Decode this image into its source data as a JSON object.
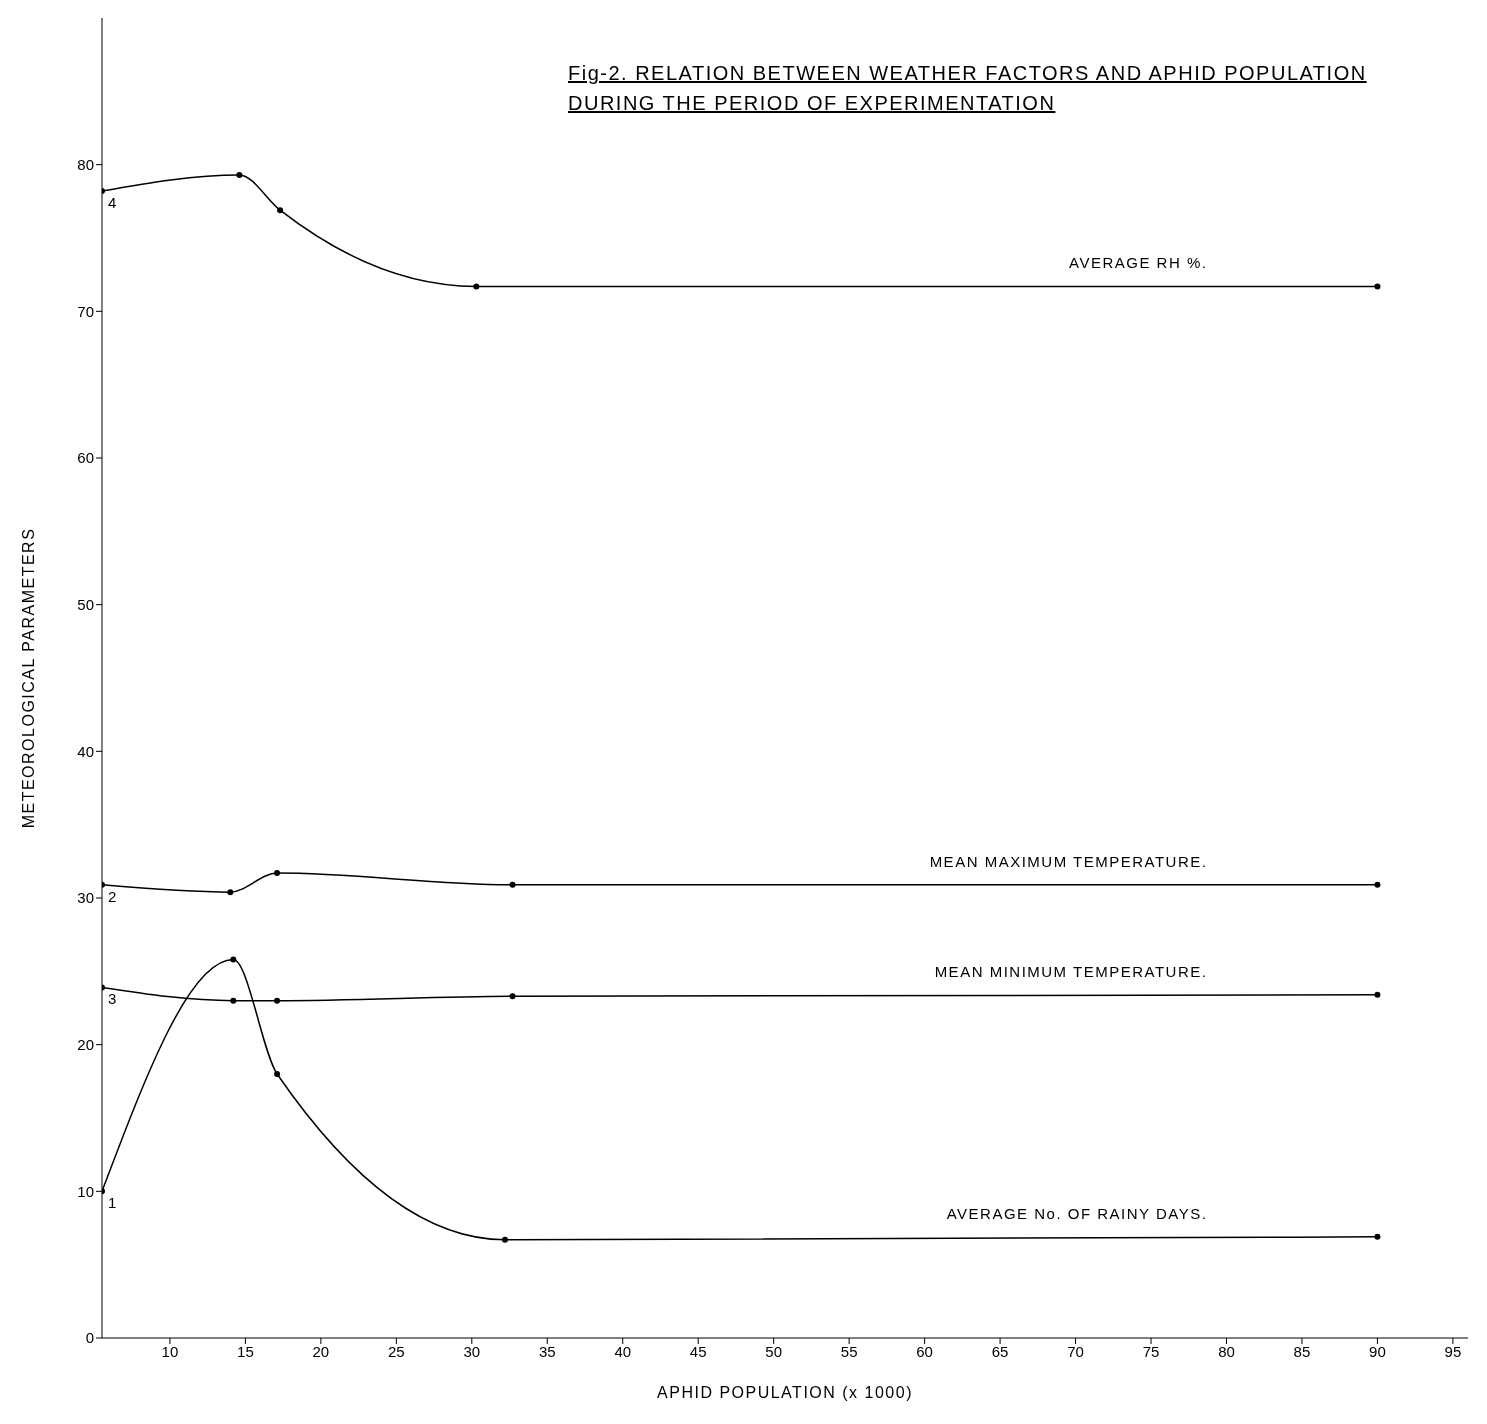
{
  "chart_data": {
    "type": "line",
    "title": "Fig-2. RELATION BETWEEN WEATHER FACTORS AND APHID POPULATION DURING THE PERIOD OF EXPERIMENTATION",
    "xlabel": "APHID POPULATION (x 1000)",
    "ylabel": "METEOROLOGICAL PARAMETERS",
    "xlim": [
      5.5,
      96
    ],
    "xticks": [
      10,
      15,
      20,
      25,
      30,
      35,
      40,
      45,
      50,
      55,
      60,
      65,
      70,
      75,
      80,
      85,
      90,
      95
    ],
    "ylim": [
      0,
      90
    ],
    "yticks": [
      0,
      10,
      20,
      30,
      40,
      50,
      60,
      70,
      80
    ],
    "grid": false,
    "marker": "circle",
    "line_style": "solid",
    "series": [
      {
        "name": "AVERAGE RH %.",
        "color": "#000000",
        "x": [
          5.5,
          14.6,
          17.3,
          30.3,
          90
        ],
        "values": [
          78.2,
          79.3,
          76.9,
          71.7,
          71.7
        ]
      },
      {
        "name": "MEAN MAXIMUM TEMPERATURE.",
        "color": "#000000",
        "x": [
          5.5,
          14.0,
          17.1,
          32.7,
          90
        ],
        "values": [
          30.9,
          30.4,
          31.7,
          30.9,
          30.9
        ]
      },
      {
        "name": "MEAN MINIMUM TEMPERATURE.",
        "color": "#000000",
        "x": [
          5.5,
          14.2,
          17.1,
          32.7,
          90
        ],
        "values": [
          23.9,
          23.0,
          23.0,
          23.3,
          23.4
        ]
      },
      {
        "name": "AVERAGE No. OF RAINY DAYS.",
        "color": "#000000",
        "x": [
          5.5,
          14.2,
          17.1,
          32.2,
          90
        ],
        "values": [
          10.0,
          25.8,
          18.0,
          6.7,
          6.9
        ]
      }
    ],
    "annotations": [
      "4",
      "2",
      "3",
      "1"
    ]
  }
}
